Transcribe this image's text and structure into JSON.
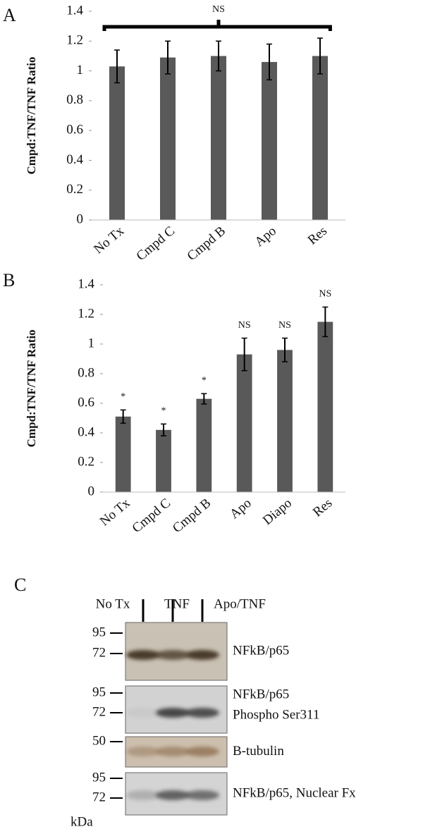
{
  "chart_data": [
    {
      "type": "bar",
      "panel_label": "A",
      "ylabel": "Cmpd:TNF/TNF Ratio",
      "categories": [
        "No Tx",
        "Cmpd C",
        "Cmpd B",
        "Apo",
        "Res"
      ],
      "values": [
        1.03,
        1.09,
        1.1,
        1.06,
        1.1
      ],
      "errors": [
        0.11,
        0.11,
        0.1,
        0.12,
        0.12
      ],
      "color": "#595959",
      "ylim": [
        0,
        1.4
      ],
      "yticks": [
        0,
        0.2,
        0.4,
        0.6,
        0.8,
        1,
        1.2,
        1.4
      ],
      "bracket_annotation": "NS"
    },
    {
      "type": "bar",
      "panel_label": "B",
      "ylabel": "Cmpd:TNF/TNF Ratio",
      "categories": [
        "No Tx",
        "Cmpd C",
        "Cmpd B",
        "Apo",
        "Diapo",
        "Res"
      ],
      "values": [
        0.51,
        0.42,
        0.63,
        0.93,
        0.96,
        1.15
      ],
      "errors": [
        0.045,
        0.04,
        0.035,
        0.11,
        0.08,
        0.1
      ],
      "bar_annotations": [
        "*",
        "*",
        "*",
        "NS",
        "NS",
        "NS"
      ],
      "color": "#595959",
      "ylim": [
        0,
        1.4
      ],
      "yticks": [
        0,
        0.2,
        0.4,
        0.6,
        0.8,
        1,
        1.2,
        1.4
      ]
    }
  ],
  "panel_c": {
    "panel_label": "C",
    "lanes": [
      "No Tx",
      "TNF",
      "Apo/TNF"
    ],
    "unit": "kDa",
    "blots": [
      {
        "markers": [
          95,
          72
        ],
        "label_lines": [
          "NFkB/p65"
        ]
      },
      {
        "markers": [
          95,
          72
        ],
        "label_lines": [
          "NFkB/p65",
          "Phospho Ser311"
        ]
      },
      {
        "markers": [
          50
        ],
        "label_lines": [
          "B-tubulin"
        ]
      },
      {
        "markers": [
          95,
          72
        ],
        "label_lines": [
          "NFkB/p65, Nuclear Fx"
        ]
      }
    ]
  }
}
